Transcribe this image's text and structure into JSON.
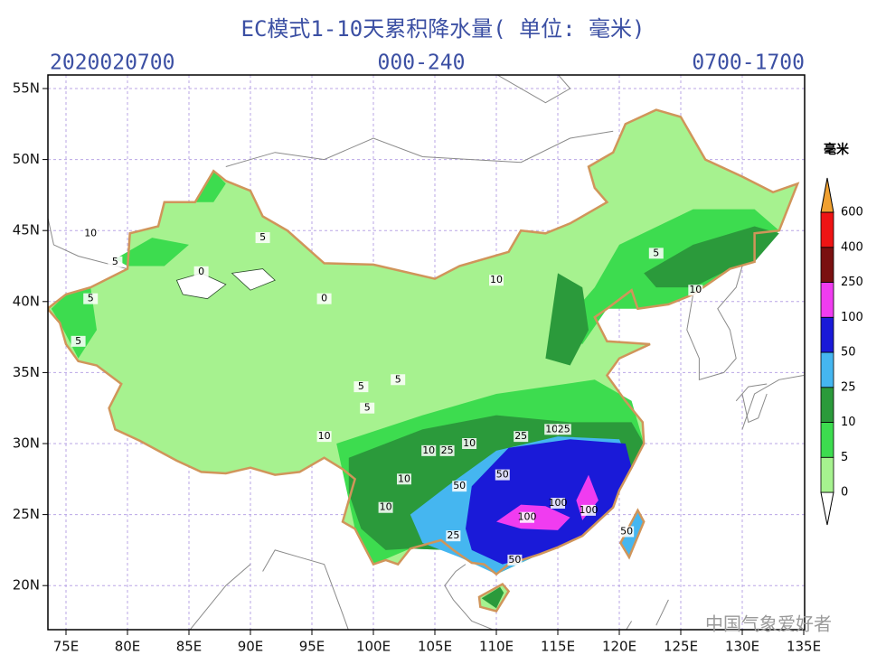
{
  "header": {
    "title": "EC模式1-10天累积降水量( 单位: 毫米)",
    "left": "2020020700",
    "center": "000-240",
    "right": "0700-1700"
  },
  "axes": {
    "x_labels": [
      "75E",
      "80E",
      "85E",
      "90E",
      "95E",
      "100E",
      "105E",
      "110E",
      "115E",
      "120E",
      "125E",
      "130E",
      "135E"
    ],
    "y_labels": [
      "20N",
      "25N",
      "30N",
      "35N",
      "40N",
      "45N",
      "50N",
      "55N"
    ]
  },
  "legend": {
    "unit": "毫米",
    "levels": [
      "0",
      "5",
      "10",
      "25",
      "50",
      "100",
      "250",
      "400",
      "600"
    ],
    "colors": [
      "#ffffff",
      "#a6f28f",
      "#3ddc4f",
      "#2b9a3b",
      "#45b6f0",
      "#1a1ad8",
      "#f03cf0",
      "#7a1010",
      "#ee1414",
      "#f0a030"
    ]
  },
  "contour_labels": [
    "5",
    "10",
    "5",
    "5",
    "0",
    "0",
    "10",
    "5",
    "5",
    "5",
    "10",
    "10",
    "5",
    "10",
    "10",
    "25",
    "50",
    "50",
    "100",
    "100",
    "100",
    "25",
    "50",
    "25",
    "10",
    "10",
    "25",
    "50",
    "5",
    "10"
  ],
  "watermark": "中国气象爱好者"
}
